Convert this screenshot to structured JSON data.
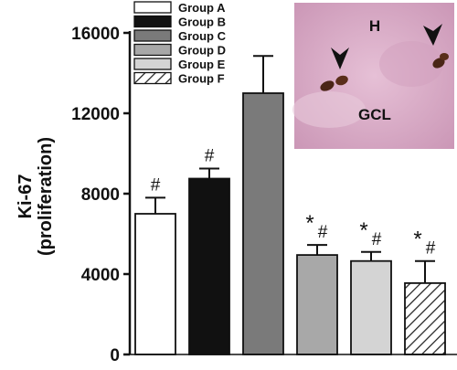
{
  "chart_data": {
    "type": "bar",
    "ylabel_line1": "Ki-67",
    "ylabel_line2": "(proliferation)",
    "ylim": [
      0,
      16000
    ],
    "yticks": [
      "0",
      "4000",
      "8000",
      "12000",
      "16000"
    ],
    "ytick_values": [
      0,
      4000,
      8000,
      12000,
      16000
    ],
    "series": [
      {
        "name": "Group A",
        "value": 7000,
        "error": 800,
        "fill": "#ffffff",
        "pattern": "none",
        "annotation": "#"
      },
      {
        "name": "Group B",
        "value": 8750,
        "error": 500,
        "fill": "#111111",
        "pattern": "none",
        "annotation": "#"
      },
      {
        "name": "Group C",
        "value": 13000,
        "error": 1850,
        "fill": "#7a7a7a",
        "pattern": "none",
        "annotation": ""
      },
      {
        "name": "Group D",
        "value": 4950,
        "error": 500,
        "fill": "#a8a8a8",
        "pattern": "none",
        "annotation": "*#"
      },
      {
        "name": "Group E",
        "value": 4650,
        "error": 450,
        "fill": "#d4d4d4",
        "pattern": "none",
        "annotation": "*#"
      },
      {
        "name": "Group F",
        "value": 3550,
        "error": 1100,
        "fill": "#ffffff",
        "pattern": "diagonal-hatch",
        "annotation": "*#"
      }
    ],
    "legend_position": "top-left inside plot",
    "grid": false
  },
  "inset": {
    "label_h": "H",
    "label_gcl": "GCL",
    "background_color": "#d9a9c4",
    "cell_color": "#4a2516"
  }
}
